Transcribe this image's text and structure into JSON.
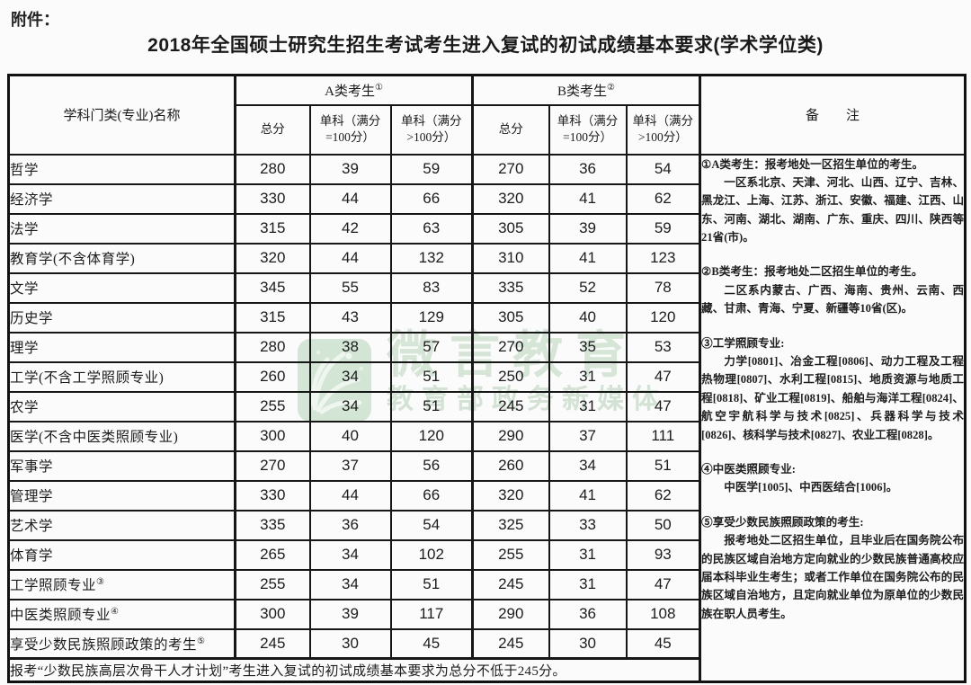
{
  "page": {
    "attachment_label": "附件：",
    "title": "2018年全国硕士研究生招生考试考生进入复试的初试成绩基本要求(学术学位类)"
  },
  "table": {
    "headers": {
      "subject": "学科门类(专业)名称",
      "group_a": {
        "label": "A类考生",
        "sup": "①"
      },
      "group_b": {
        "label": "B类考生",
        "sup": "②"
      },
      "sub": [
        "总分",
        "单科（满分=100分）",
        "单科（满分>100分）"
      ],
      "remarks": "备　　注"
    },
    "rows": [
      {
        "name": "哲学",
        "sup": "",
        "values": [
          "280",
          "39",
          "59",
          "270",
          "36",
          "54"
        ]
      },
      {
        "name": "经济学",
        "sup": "",
        "values": [
          "330",
          "44",
          "66",
          "320",
          "41",
          "62"
        ]
      },
      {
        "name": "法学",
        "sup": "",
        "values": [
          "315",
          "42",
          "63",
          "305",
          "39",
          "59"
        ]
      },
      {
        "name": "教育学(不含体育学)",
        "sup": "",
        "values": [
          "320",
          "44",
          "132",
          "310",
          "41",
          "123"
        ]
      },
      {
        "name": "文学",
        "sup": "",
        "values": [
          "345",
          "55",
          "83",
          "335",
          "52",
          "78"
        ]
      },
      {
        "name": "历史学",
        "sup": "",
        "values": [
          "315",
          "43",
          "129",
          "305",
          "40",
          "120"
        ]
      },
      {
        "name": "理学",
        "sup": "",
        "values": [
          "280",
          "38",
          "57",
          "270",
          "35",
          "53"
        ]
      },
      {
        "name": "工学(不含工学照顾专业)",
        "sup": "",
        "values": [
          "260",
          "34",
          "51",
          "250",
          "31",
          "47"
        ]
      },
      {
        "name": "农学",
        "sup": "",
        "values": [
          "255",
          "34",
          "51",
          "245",
          "31",
          "47"
        ]
      },
      {
        "name": "医学(不含中医类照顾专业)",
        "sup": "",
        "values": [
          "300",
          "40",
          "120",
          "290",
          "37",
          "111"
        ]
      },
      {
        "name": "军事学",
        "sup": "",
        "values": [
          "270",
          "37",
          "56",
          "260",
          "34",
          "51"
        ]
      },
      {
        "name": "管理学",
        "sup": "",
        "values": [
          "330",
          "44",
          "66",
          "320",
          "41",
          "62"
        ]
      },
      {
        "name": "艺术学",
        "sup": "",
        "values": [
          "335",
          "36",
          "54",
          "325",
          "33",
          "50"
        ]
      },
      {
        "name": "体育学",
        "sup": "",
        "values": [
          "265",
          "34",
          "102",
          "255",
          "31",
          "93"
        ]
      },
      {
        "name": "工学照顾专业",
        "sup": "③",
        "values": [
          "255",
          "34",
          "51",
          "245",
          "31",
          "47"
        ]
      },
      {
        "name": "中医类照顾专业",
        "sup": "④",
        "values": [
          "300",
          "39",
          "117",
          "290",
          "36",
          "108"
        ]
      },
      {
        "name": "享受少数民族照顾政策的考生",
        "sup": "⑤",
        "values": [
          "245",
          "30",
          "45",
          "245",
          "30",
          "45"
        ]
      }
    ],
    "footer_note": "报考“少数民族高层次骨干人才计划”考生进入复试的初试成绩基本要求为总分不低于245分。"
  },
  "remarks": {
    "paragraphs": [
      {
        "text": "①A类考生：报考地处一区招生单位的考生。",
        "indent": false,
        "gap": false
      },
      {
        "text": "一区系北京、天津、河北、山西、辽宁、吉林、黑龙江、上海、江苏、浙江、安徽、福建、江西、山东、河南、湖北、湖南、广东、重庆、四川、陕西等21省(市)。",
        "indent": true,
        "gap": false
      },
      {
        "text": "②B类考生：报考地处二区招生单位的考生。",
        "indent": false,
        "gap": true
      },
      {
        "text": "二区系内蒙古、广西、海南、贵州、云南、西藏、甘肃、青海、宁夏、新疆等10省(区)。",
        "indent": true,
        "gap": false
      },
      {
        "text": "③工学照顾专业:",
        "indent": false,
        "gap": true
      },
      {
        "text": "力学[0801]、冶金工程[0806]、动力工程及工程热物理[0807]、水利工程[0815]、地质资源与地质工程[0818]、矿业工程[0819]、船舶与海洋工程[0824]、航空宇航科学与技术[0825]、兵器科学与技术[0826]、核科学与技术[0827]、农业工程[0828]。",
        "indent": true,
        "gap": false
      },
      {
        "text": "④中医类照顾专业:",
        "indent": false,
        "gap": true
      },
      {
        "text": "中医学[1005]、中西医结合[1006]。",
        "indent": true,
        "gap": false
      },
      {
        "text": "⑤享受少数民族照顾政策的考生:",
        "indent": false,
        "gap": true
      },
      {
        "text": "报考地处二区招生单位，且毕业后在国务院公布的民族区域自治地方定向就业的少数民族普通高校应届本科毕业生考生；或者工作单位在国务院公布的民族区域自治地方，且定向就业单位为原单位的少数民族在职人员考生。",
        "indent": true,
        "gap": false
      }
    ]
  },
  "watermark": {
    "text_main": "微言教育",
    "text_sub": "教育部政务新媒体",
    "logo_color": "#cde2cf"
  }
}
